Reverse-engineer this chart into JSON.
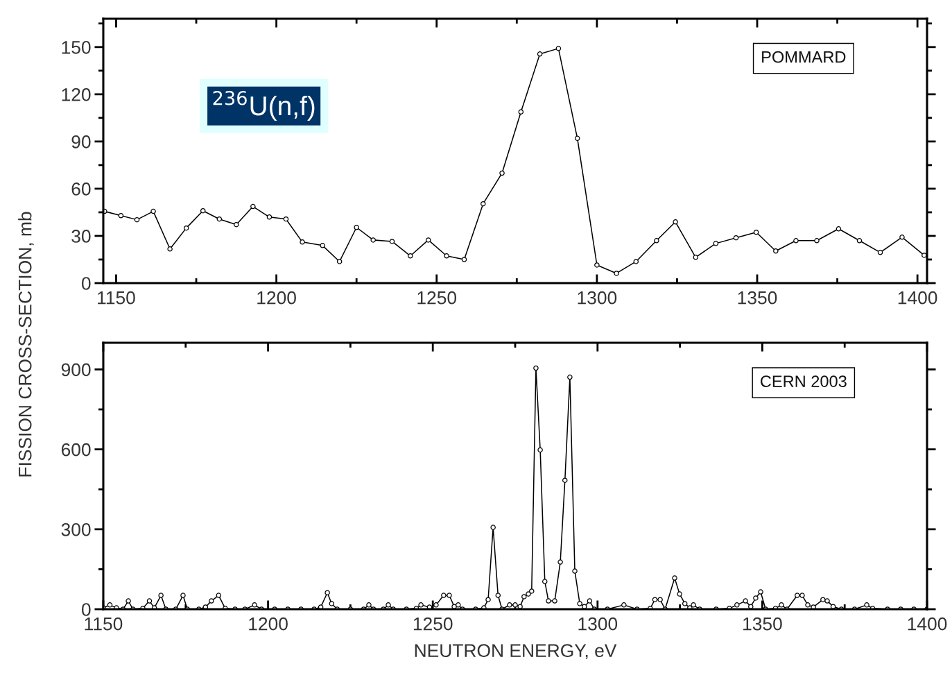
{
  "chart_data": [
    {
      "type": "line",
      "ylabel": "FISSION CROSS-SECTION, mb",
      "annotations": [
        "$^{236}$U(n,f)",
        "POMMARD"
      ],
      "marker": "circle",
      "line_style": "solid",
      "grid": false,
      "legend": false,
      "xlim": [
        1146,
        1403
      ],
      "xticks": [
        1150,
        1200,
        1250,
        1300,
        1350,
        1400
      ],
      "ylim": [
        0,
        168
      ],
      "yticks": [
        0,
        30,
        60,
        90,
        120,
        150
      ],
      "series": [
        {
          "color": "#000000",
          "x": [
            1146.4,
            1151.5,
            1156.5,
            1161.6,
            1166.8,
            1171.9,
            1177.1,
            1182.2,
            1187.5,
            1192.7,
            1197.8,
            1203.0,
            1208.1,
            1214.4,
            1219.7,
            1225.0,
            1230.2,
            1236.1,
            1241.8,
            1247.4,
            1253.1,
            1258.6,
            1264.5,
            1270.4,
            1276.3,
            1282.2,
            1288.0,
            1293.9,
            1300.0,
            1306.1,
            1312.2,
            1318.6,
            1324.5,
            1330.8,
            1337.1,
            1343.4,
            1349.7,
            1355.8,
            1362.1,
            1368.6,
            1375.4,
            1381.9,
            1388.4,
            1395.2,
            1402.1
          ],
          "values": [
            45.6,
            42.9,
            40.3,
            45.6,
            21.7,
            35.0,
            46.0,
            40.7,
            37.2,
            48.7,
            42.0,
            40.7,
            26.1,
            23.9,
            13.7,
            35.4,
            27.4,
            26.5,
            17.3,
            27.4,
            17.3,
            15.0,
            50.4,
            69.9,
            108.8,
            145.6,
            149.1,
            92.0,
            11.5,
            6.2,
            13.7,
            27.0,
            38.9,
            16.4,
            25.2,
            28.8,
            32.3,
            20.4,
            27.0,
            27.0,
            34.5,
            27.0,
            19.5,
            29.2,
            17.7
          ]
        }
      ]
    },
    {
      "type": "line",
      "xlabel": "NEUTRON ENERGY, eV",
      "annotations": [
        "CERN 2003"
      ],
      "marker": "circle",
      "line_style": "solid",
      "grid": false,
      "legend": false,
      "xlim": [
        1150,
        1400
      ],
      "xticks": [
        1150,
        1200,
        1250,
        1300,
        1350,
        1400
      ],
      "ylim": [
        0,
        1000
      ],
      "yticks": [
        0,
        300,
        600,
        900
      ],
      "series": [
        {
          "color": "#000000",
          "x": [
            1150,
            1152,
            1154,
            1156,
            1157.6,
            1159,
            1162,
            1164,
            1165.5,
            1167.5,
            1169,
            1172,
            1174.2,
            1175.5,
            1179,
            1181,
            1182.8,
            1185,
            1187,
            1190,
            1193,
            1195.9,
            1198,
            1202,
            1206,
            1210,
            1214,
            1216,
            1218,
            1219.3,
            1221,
            1225,
            1229,
            1230.6,
            1232,
            1235,
            1236.5,
            1238,
            1242,
            1245,
            1246.4,
            1249,
            1251,
            1253.3,
            1255,
            1256.5,
            1257.7,
            1259,
            1263,
            1265.5,
            1266.8,
            1268.3,
            1269.8,
            1271,
            1273.3,
            1275,
            1276.5,
            1277.7,
            1279,
            1280,
            1281.3,
            1282.6,
            1284,
            1285.1,
            1287,
            1288.7,
            1290.1,
            1291.6,
            1293.1,
            1294.6,
            1296,
            1297.6,
            1299,
            1303,
            1308,
            1312,
            1316,
            1317.4,
            1319,
            1320.5,
            1323.4,
            1324.9,
            1326.5,
            1328,
            1329.1,
            1331,
            1336,
            1340,
            1342.3,
            1344.9,
            1346.5,
            1348,
            1349.5,
            1351,
            1354,
            1355.8,
            1357.5,
            1360.6,
            1362.1,
            1363.8,
            1365.5,
            1368.4,
            1369.7,
            1371.5,
            1374,
            1378,
            1381.7,
            1383.5,
            1388,
            1392,
            1396,
            1400
          ],
          "values": [
            5,
            16,
            5,
            0,
            31,
            0,
            3,
            31,
            5,
            52,
            0,
            0,
            52,
            0,
            0,
            8,
            31,
            52,
            3,
            0,
            0,
            16,
            0,
            0,
            0,
            0,
            0,
            8,
            62,
            21,
            0,
            0,
            0,
            16,
            0,
            0,
            16,
            0,
            0,
            3,
            16,
            8,
            16,
            52,
            52,
            10,
            16,
            0,
            0,
            5,
            36,
            307,
            52,
            0,
            16,
            16,
            10,
            47,
            57,
            68,
            905,
            598,
            104,
            31,
            31,
            177,
            484,
            871,
            143,
            21,
            10,
            31,
            0,
            0,
            16,
            0,
            3,
            36,
            36,
            0,
            117,
            57,
            21,
            5,
            16,
            0,
            0,
            3,
            16,
            31,
            10,
            42,
            65,
            0,
            3,
            16,
            0,
            52,
            52,
            16,
            8,
            36,
            31,
            10,
            0,
            0,
            16,
            3,
            0,
            0,
            0,
            0
          ]
        }
      ]
    }
  ]
}
